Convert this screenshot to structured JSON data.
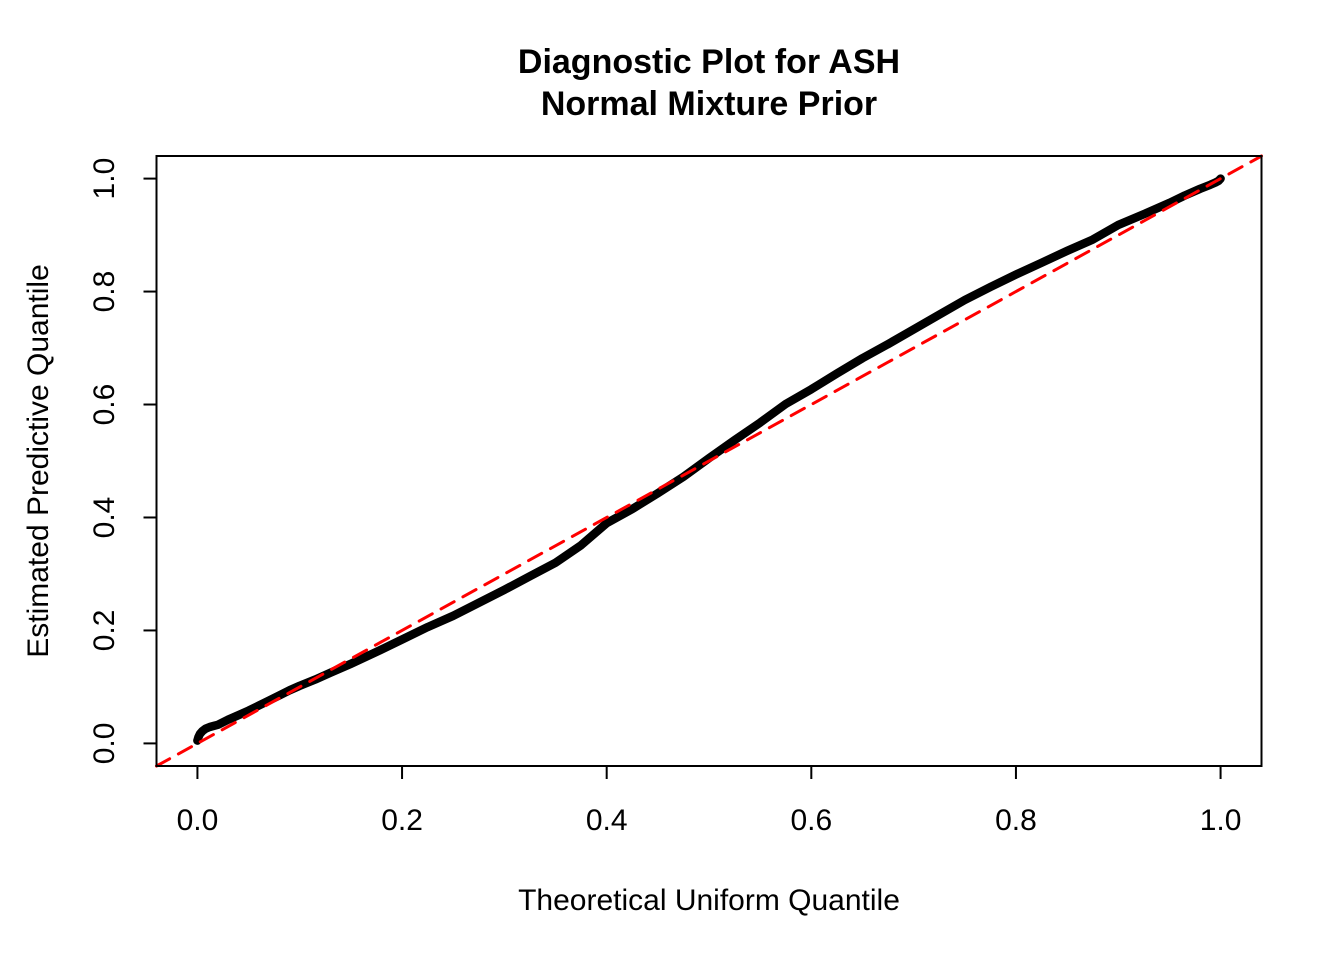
{
  "chart_data": {
    "type": "scatter",
    "title_line1": "Diagnostic Plot for ASH",
    "title_line2": "Normal Mixture Prior",
    "xlabel": "Theoretical Uniform Quantile",
    "ylabel": "Estimated Predictive Quantile",
    "xlim": [
      -0.04,
      1.04
    ],
    "ylim": [
      -0.04,
      1.04
    ],
    "grid": false,
    "legend": null,
    "colors": {
      "points": "#000000",
      "reference_line": "#FF0000",
      "axis": "#000000",
      "background": "#FFFFFF"
    },
    "x_ticks": {
      "values": [
        0.0,
        0.2,
        0.4,
        0.6,
        0.8,
        1.0
      ],
      "labels": [
        "0.0",
        "0.2",
        "0.4",
        "0.6",
        "0.8",
        "1.0"
      ]
    },
    "y_ticks": {
      "values": [
        0.0,
        0.2,
        0.4,
        0.6,
        0.8,
        1.0
      ],
      "labels": [
        "0.0",
        "0.2",
        "0.4",
        "0.6",
        "0.8",
        "1.0"
      ]
    },
    "series": [
      {
        "name": "estimated-predictive-quantiles",
        "style": "solid",
        "color": "#000000",
        "line_width": 8.5,
        "points": [
          [
            0.0,
            0.005
          ],
          [
            0.001,
            0.011
          ],
          [
            0.0025,
            0.017
          ],
          [
            0.005,
            0.022
          ],
          [
            0.008,
            0.026
          ],
          [
            0.012,
            0.029
          ],
          [
            0.016,
            0.031
          ],
          [
            0.02,
            0.033
          ],
          [
            0.03,
            0.042
          ],
          [
            0.04,
            0.05
          ],
          [
            0.05,
            0.058
          ],
          [
            0.06,
            0.067
          ],
          [
            0.07,
            0.076
          ],
          [
            0.08,
            0.085
          ],
          [
            0.09,
            0.094
          ],
          [
            0.1,
            0.102
          ],
          [
            0.115,
            0.113
          ],
          [
            0.13,
            0.125
          ],
          [
            0.15,
            0.141
          ],
          [
            0.175,
            0.162
          ],
          [
            0.2,
            0.184
          ],
          [
            0.225,
            0.206
          ],
          [
            0.25,
            0.226
          ],
          [
            0.275,
            0.249
          ],
          [
            0.3,
            0.272
          ],
          [
            0.325,
            0.296
          ],
          [
            0.35,
            0.32
          ],
          [
            0.375,
            0.351
          ],
          [
            0.4,
            0.39
          ],
          [
            0.425,
            0.415
          ],
          [
            0.45,
            0.443
          ],
          [
            0.475,
            0.472
          ],
          [
            0.5,
            0.505
          ],
          [
            0.525,
            0.537
          ],
          [
            0.55,
            0.568
          ],
          [
            0.575,
            0.601
          ],
          [
            0.6,
            0.627
          ],
          [
            0.625,
            0.655
          ],
          [
            0.65,
            0.682
          ],
          [
            0.675,
            0.707
          ],
          [
            0.7,
            0.733
          ],
          [
            0.725,
            0.759
          ],
          [
            0.75,
            0.785
          ],
          [
            0.775,
            0.808
          ],
          [
            0.8,
            0.83
          ],
          [
            0.825,
            0.851
          ],
          [
            0.85,
            0.872
          ],
          [
            0.875,
            0.892
          ],
          [
            0.9,
            0.918
          ],
          [
            0.925,
            0.937
          ],
          [
            0.95,
            0.957
          ],
          [
            0.965,
            0.97
          ],
          [
            0.98,
            0.982
          ],
          [
            0.99,
            0.989
          ],
          [
            0.995,
            0.993
          ],
          [
            0.998,
            0.996
          ],
          [
            1.0,
            1.0
          ]
        ]
      },
      {
        "name": "reference-diagonal",
        "style": "dashed",
        "color": "#FF0000",
        "line_width": 3,
        "dash": [
          15,
          10
        ],
        "points": [
          [
            -0.04,
            -0.04
          ],
          [
            1.04,
            1.04
          ]
        ]
      }
    ]
  }
}
